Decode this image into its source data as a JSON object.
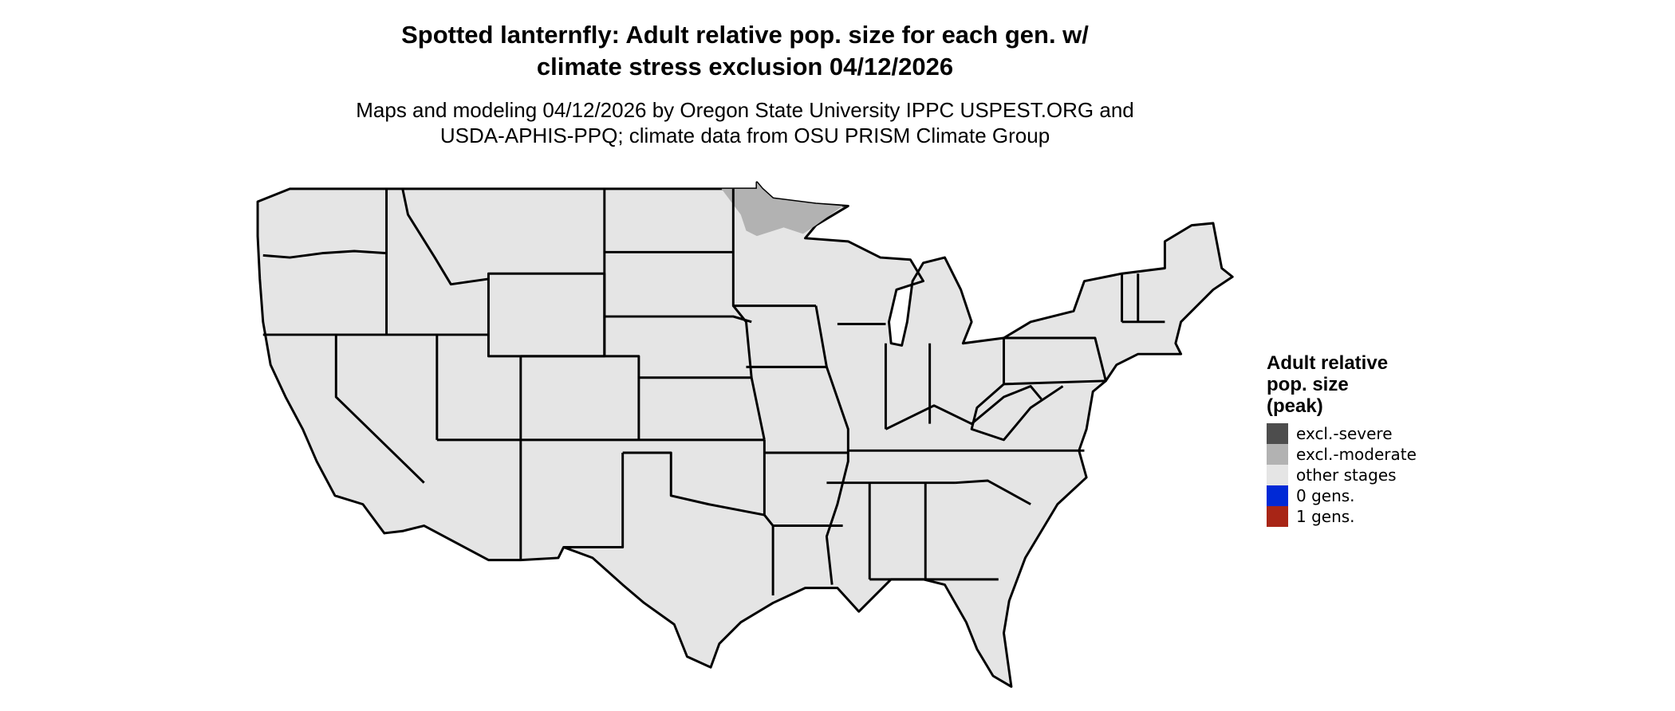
{
  "title": "Spotted lanternfly: Adult relative pop. size for each gen. w/ climate stress exclusion 04/12/2026",
  "title_lines": [
    "Spotted lanternfly: Adult relative pop. size for each gen. w/",
    "climate stress exclusion 04/12/2026"
  ],
  "subtitle_lines": [
    "Maps and modeling 04/12/2026 by Oregon State University IPPC USPEST.ORG and",
    "USDA-APHIS-PPQ; climate data from OSU PRISM Climate Group"
  ],
  "map": {
    "region": "Contiguous United States",
    "base_color": "#e5e5e5",
    "border_color": "#000000",
    "highlighted_areas": [
      {
        "area": "northern Minnesota",
        "category": "excl.-moderate",
        "color": "#b2b2b2"
      }
    ]
  },
  "legend": {
    "title_lines": [
      "Adult relative",
      "pop. size",
      "(peak)"
    ],
    "items": [
      {
        "label": "excl.-severe",
        "color": "#4d4d4d"
      },
      {
        "label": "excl.-moderate",
        "color": "#b2b2b2"
      },
      {
        "label": "other stages",
        "color": "#e5e5e5"
      },
      {
        "label": "0 gens.",
        "color": "#0029d6"
      },
      {
        "label": "1 gens.",
        "color": "#a82516"
      }
    ]
  }
}
